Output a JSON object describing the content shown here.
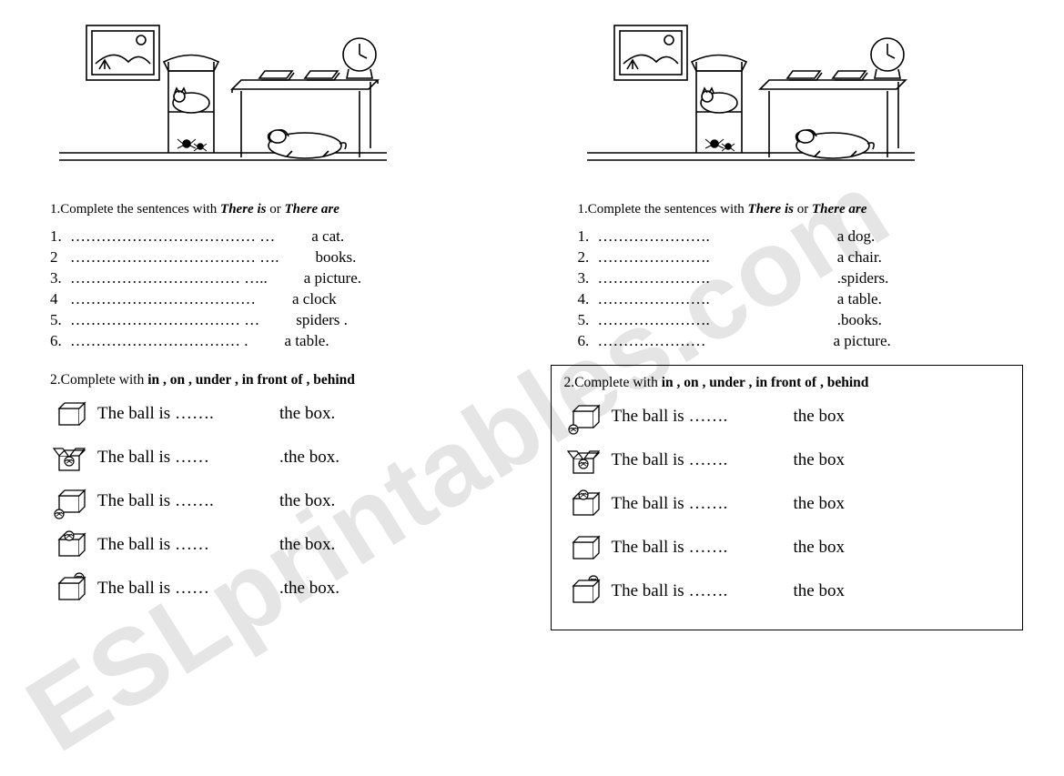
{
  "left": {
    "instruction_prefix": "1.Complete the sentences with  ",
    "opt1": "There is",
    "or": "  or  ",
    "opt2": "There are",
    "items": [
      {
        "n": "1.",
        "dots": " ………………………………     …",
        "w": "a cat."
      },
      {
        "n": "2",
        "dots": "………………………………       ….",
        "w": "books."
      },
      {
        "n": "3.",
        "dots": " ……………………………       …..",
        "w": "a picture."
      },
      {
        "n": "4",
        "dots": "………………………………         ",
        "w": "a clock"
      },
      {
        "n": "5.",
        "dots": " ……………………………         …",
        "w": "spiders ."
      },
      {
        "n": "6.",
        "dots": " ……………………………            .",
        "w": "a table."
      }
    ]
  },
  "right": {
    "instruction_prefix": "1.Complete the sentences with  ",
    "opt1": "There is",
    "or": "  or  ",
    "opt2": "There are",
    "items": [
      {
        "n": "1.",
        "dots": " ………………….",
        "w": "a dog."
      },
      {
        "n": "2.",
        "dots": " ………………….",
        "w": "a chair."
      },
      {
        "n": "3.",
        "dots": " ………………….",
        "w": ".spiders."
      },
      {
        "n": "4.",
        "dots": " ………………….",
        "w": "a table."
      },
      {
        "n": "5.",
        "dots": " ………………….",
        "w": ".books."
      },
      {
        "n": "6.",
        "dots": " …………………",
        "w": "a picture."
      }
    ]
  },
  "sec2_left": {
    "instr_prefix": "2.Complete with  ",
    "instr_bold": "in , on , under , in front of , behind",
    "rows": [
      {
        "icon": "closed",
        "t1": "The ball is …….",
        "t2": "the box."
      },
      {
        "icon": "open",
        "t1": " The ball is ……",
        "t2": ".the box."
      },
      {
        "icon": "front",
        "t1": " The ball is …….",
        "t2": "the box."
      },
      {
        "icon": "on",
        "t1": " The ball is ……",
        "t2": "the box."
      },
      {
        "icon": "behind",
        "t1": " The ball is ……",
        "t2": ".the box."
      }
    ]
  },
  "sec2_right": {
    "instr_prefix": "2.Complete with  ",
    "instr_bold": "in , on , under , in front of , behind",
    "rows": [
      {
        "icon": "front",
        "t1": "The ball is …….",
        "t2": "the box"
      },
      {
        "icon": "open",
        "t1": " The ball is …….",
        "t2": "the box"
      },
      {
        "icon": "on",
        "t1": " The ball is …….",
        "t2": "the box"
      },
      {
        "icon": "closed",
        "t1": " The ball is …….",
        "t2": "the box"
      },
      {
        "icon": "behind",
        "t1": " The ball is …….",
        "t2": "the box"
      }
    ]
  },
  "watermark": "ESLprintables.com"
}
